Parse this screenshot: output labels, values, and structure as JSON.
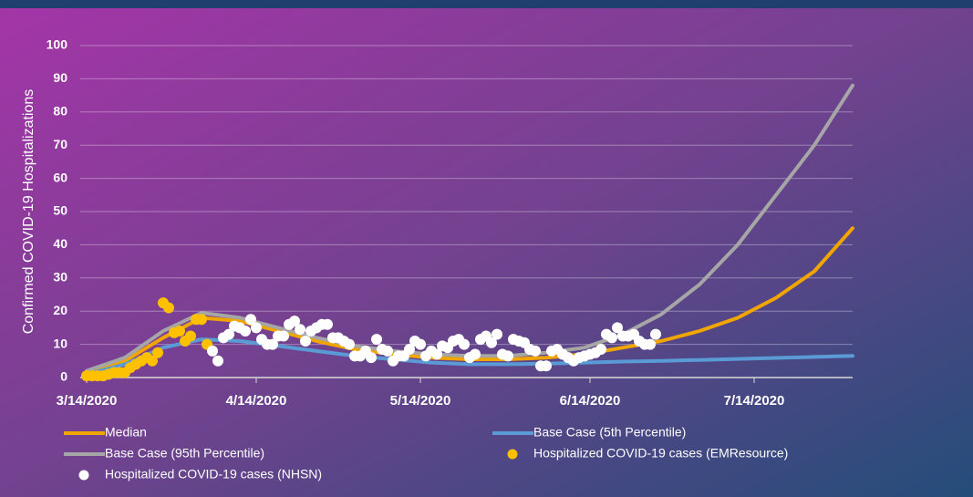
{
  "chart_data": {
    "type": "line",
    "y_label": "Confirmed COVID-19 Hospitalizations",
    "xlim": [
      "3/14/2020",
      "8/1/2020"
    ],
    "xticks": [
      "3/14/2020",
      "4/14/2020",
      "5/14/2020",
      "6/14/2020",
      "7/14/2020"
    ],
    "ylim": [
      0,
      100
    ],
    "yticks": [
      0,
      10,
      20,
      30,
      40,
      50,
      60,
      70,
      80,
      90,
      100
    ],
    "grid": true,
    "legend": "bottom",
    "series": [
      {
        "name": "Median",
        "type": "line",
        "color": "#f0a500",
        "x": [
          "3/14/2020",
          "3/21/2020",
          "3/28/2020",
          "4/4/2020",
          "4/11/2020",
          "4/18/2020",
          "4/25/2020",
          "5/2/2020",
          "5/9/2020",
          "5/16/2020",
          "5/23/2020",
          "5/30/2020",
          "6/6/2020",
          "6/13/2020",
          "6/20/2020",
          "6/27/2020",
          "7/4/2020",
          "7/11/2020",
          "7/18/2020",
          "7/25/2020",
          "8/1/2020"
        ],
        "values": [
          1.5,
          5,
          12,
          18,
          17,
          14,
          11,
          8.5,
          7,
          6,
          5.5,
          5.5,
          6,
          7,
          9,
          11,
          14,
          18,
          24,
          32,
          45
        ]
      },
      {
        "name": "Base Case (5th Percentile)",
        "type": "line",
        "color": "#5b9bd5",
        "x": [
          "3/14/2020",
          "3/21/2020",
          "3/28/2020",
          "4/4/2020",
          "4/11/2020",
          "4/18/2020",
          "4/25/2020",
          "5/2/2020",
          "5/9/2020",
          "5/16/2020",
          "5/23/2020",
          "5/30/2020",
          "6/6/2020",
          "6/13/2020",
          "6/20/2020",
          "6/27/2020",
          "7/4/2020",
          "7/11/2020",
          "7/18/2020",
          "7/25/2020",
          "8/1/2020"
        ],
        "values": [
          1,
          4,
          9,
          11.5,
          11,
          9.5,
          8,
          6.5,
          5.5,
          4.5,
          4,
          4,
          4.2,
          4.5,
          4.8,
          5,
          5.3,
          5.6,
          5.9,
          6.2,
          6.5
        ]
      },
      {
        "name": "Base Case (95th Percentile)",
        "type": "line",
        "color": "#a6a6a6",
        "x": [
          "3/14/2020",
          "3/21/2020",
          "3/28/2020",
          "4/4/2020",
          "4/11/2020",
          "4/18/2020",
          "4/25/2020",
          "5/2/2020",
          "5/9/2020",
          "5/16/2020",
          "5/23/2020",
          "5/30/2020",
          "6/6/2020",
          "6/13/2020",
          "6/20/2020",
          "6/27/2020",
          "7/4/2020",
          "7/11/2020",
          "7/18/2020",
          "7/25/2020",
          "8/1/2020"
        ],
        "values": [
          2,
          6,
          14,
          19.5,
          18,
          15,
          12,
          9.5,
          8,
          7,
          6.5,
          6.5,
          7.5,
          9,
          13,
          19,
          28,
          40,
          55,
          70,
          88
        ]
      },
      {
        "name": "Hospitalized COVID-19 cases (EMResource)",
        "type": "scatter",
        "color": "#ffc000",
        "x": [
          "3/14/2020",
          "3/15/2020",
          "3/16/2020",
          "3/17/2020",
          "3/18/2020",
          "3/19/2020",
          "3/20/2020",
          "3/21/2020",
          "3/22/2020",
          "3/23/2020",
          "3/24/2020",
          "3/25/2020",
          "3/26/2020",
          "3/27/2020",
          "3/28/2020",
          "3/29/2020",
          "3/30/2020",
          "3/31/2020",
          "4/1/2020",
          "4/2/2020",
          "4/3/2020",
          "4/4/2020",
          "4/5/2020"
        ],
        "values": [
          0.5,
          0.5,
          0.5,
          0.5,
          1,
          1.5,
          1.5,
          1.5,
          3,
          4,
          5,
          6,
          5,
          7.5,
          22.5,
          21,
          13.5,
          14,
          11,
          12.5,
          17.5,
          17.5,
          10
        ]
      },
      {
        "name": "Hospitalized COVID-19 cases (NHSN)",
        "type": "scatter",
        "color": "#ffffff",
        "x": [
          "4/6/2020",
          "4/7/2020",
          "4/8/2020",
          "4/9/2020",
          "4/10/2020",
          "4/11/2020",
          "4/12/2020",
          "4/13/2020",
          "4/14/2020",
          "4/15/2020",
          "4/16/2020",
          "4/17/2020",
          "4/18/2020",
          "4/19/2020",
          "4/20/2020",
          "4/21/2020",
          "4/22/2020",
          "4/23/2020",
          "4/24/2020",
          "4/25/2020",
          "4/26/2020",
          "4/27/2020",
          "4/28/2020",
          "4/29/2020",
          "4/30/2020",
          "5/1/2020",
          "5/2/2020",
          "5/3/2020",
          "5/4/2020",
          "5/5/2020",
          "5/6/2020",
          "5/7/2020",
          "5/8/2020",
          "5/9/2020",
          "5/10/2020",
          "5/11/2020",
          "5/12/2020",
          "5/13/2020",
          "5/14/2020",
          "5/15/2020",
          "5/16/2020",
          "5/17/2020",
          "5/18/2020",
          "5/19/2020",
          "5/20/2020",
          "5/21/2020",
          "5/22/2020",
          "5/23/2020",
          "5/24/2020",
          "5/25/2020",
          "5/26/2020",
          "5/27/2020",
          "5/28/2020",
          "5/29/2020",
          "5/30/2020",
          "5/31/2020",
          "6/1/2020",
          "6/2/2020",
          "6/3/2020",
          "6/4/2020",
          "6/5/2020",
          "6/6/2020",
          "6/7/2020",
          "6/8/2020",
          "6/9/2020",
          "6/10/2020",
          "6/11/2020",
          "6/12/2020",
          "6/13/2020",
          "6/14/2020",
          "6/15/2020",
          "6/16/2020",
          "6/17/2020",
          "6/18/2020",
          "6/19/2020",
          "6/20/2020",
          "6/21/2020",
          "6/22/2020",
          "6/23/2020",
          "6/24/2020",
          "6/25/2020",
          "6/26/2020"
        ],
        "values": [
          8,
          5,
          12,
          13,
          15.5,
          15,
          14,
          17.5,
          15,
          11.5,
          10,
          10,
          12.5,
          12.5,
          16,
          17,
          14.5,
          11,
          14,
          15,
          16,
          16,
          12,
          12,
          11,
          10,
          6.5,
          6.5,
          8,
          6,
          11.5,
          8.5,
          8,
          5,
          6.5,
          6.5,
          8.5,
          11,
          10,
          6.5,
          8,
          7,
          9.5,
          9,
          11,
          11.5,
          10,
          6,
          7,
          11.5,
          12.5,
          10.5,
          13,
          7,
          6.5,
          11.5,
          11,
          10.5,
          8.5,
          8,
          3.5,
          3.5,
          8,
          8.5,
          7,
          6,
          5,
          6,
          6.5,
          7,
          7.5,
          8.5,
          13,
          12,
          15,
          12.5,
          12.5,
          13,
          11,
          10,
          10,
          13
        ]
      }
    ]
  }
}
